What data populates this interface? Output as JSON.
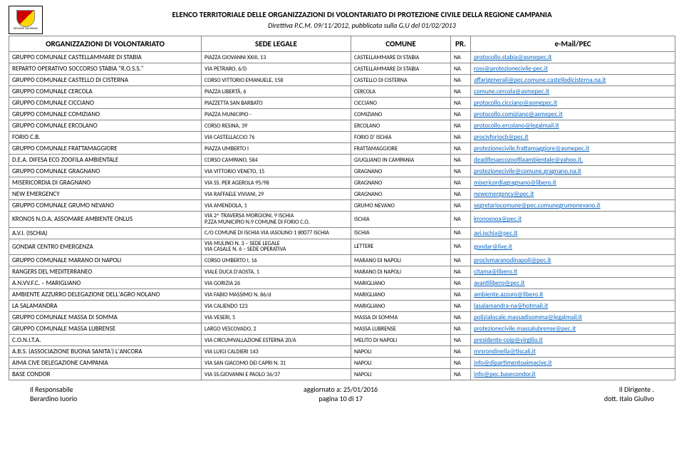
{
  "header": {
    "logo_caption": "REGIONE CAMPANIA",
    "title": "ELENCO TERRITORIALE DELLE ORGANIZZAZIONI DI VOLONTARIATO DI PROTEZIONE CIVILE DELLA REGIONE CAMPANIA",
    "subtitle": "Direttiva P.C.M. 09/11/2012, pubblicata sulla G.U del 01/02/2013"
  },
  "columns": {
    "org": "ORGANIZZAZIONI DI VOLONTARIATO",
    "sede": "SEDE LEGALE",
    "comune": "COMUNE",
    "pr": "PR.",
    "email": "e-Mail/PEC"
  },
  "rows": [
    {
      "org": "GRUPPO COMUNALE CASTELLAMMARE DI STABIA",
      "sede": "PIAZZA GIOVANNI XXIII, 13",
      "comune": "CASTELLAMMARE DI STABIA",
      "pr": "NA",
      "email": "protocollo.stabia@asmepec.it"
    },
    {
      "org": "REPARTO OPERATIVO SOCCORSO STABIA \"R.O.S.S.\"",
      "sede": "VIA PETRARO, 6/D",
      "comune": "CASTELLAMMARE DI STABIA",
      "pr": "NA",
      "email": "ross@protezionecivile-pec.it"
    },
    {
      "org": "GRUPPO COMUNALE CASTELLO DI CISTERNA",
      "sede": "CORSO VITTORIO EMANUELE, 158",
      "comune": "CASTELLO DI CISTERNA",
      "pr": "NA",
      "email": "affarigenerali@pec.comune.castellodicisterna.na.it"
    },
    {
      "org": "GRUPPO COMUNALE CERCOLA",
      "sede": "PIAZZA LIBERTÀ, 6",
      "comune": "CERCOLA",
      "pr": "NA",
      "email": "comune.cercola@asmepec.it"
    },
    {
      "org": "GRUPPO COMUNALE CICCIANO",
      "sede": "PIAZZETTA SAN BARBATO",
      "comune": "CICCIANO",
      "pr": "NA",
      "email": "protocollo.cicciano@asmepec.it"
    },
    {
      "org": "GRUPPO COMUNALE COMIZIANO",
      "sede": "PIAZZA MUNICIPIO -",
      "comune": "COMIZIANO",
      "pr": "NA",
      "email": "protocollo.comiziano@asmepec.it"
    },
    {
      "org": "GRUPPO COMUNALE ERCOLANO",
      "sede": "CORSO RESINA, 39",
      "comune": "ERCOLANO",
      "pr": "NA",
      "email": "protocollo.ercolano@legalmail.it"
    },
    {
      "org": "FORIO C.B.",
      "sede": "VIA CASTELLACCIO 76",
      "comune": "FORIO D' ISCHIA",
      "pr": "NA",
      "email": "procivforiocb@pec.it"
    },
    {
      "org": "GRUPPO COMUNALE FRATTAMAGGIORE",
      "sede": "PIAZZA UMBERTO I",
      "comune": "FRATTAMAGGIORE",
      "pr": "NA",
      "email": "protezionecivile.frattamaggiore@asmepec.it"
    },
    {
      "org": "D.E.A. DIFESA ECO ZOOFILA AMBIENTALE",
      "sede": "CORSO CAMPANO, 584",
      "comune": "GIUGLIANO IN CAMPANIA",
      "pr": "NA",
      "email": "deadifesaecozoofilaambientale@yahoo.it."
    },
    {
      "org": "GRUPPO COMUNALE GRAGNANO",
      "sede": "VIA VITTORIO VENETO, 15",
      "comune": "GRAGNANO",
      "pr": "NA",
      "email": "protezionecivile@comune.gragnano.na.it"
    },
    {
      "org": "MISERICORDIA DI GRAGNANO",
      "sede": "VIA SS. PER AGEROLA 95/98",
      "comune": "GRAGNANO",
      "pr": "NA",
      "email": "misericordiagragnano@libero.it"
    },
    {
      "org": "NEW EMERGENCY",
      "sede": "VIA RAFFAELE VIVIANI, 29",
      "comune": "GRAGNANO",
      "pr": "NA",
      "email": "newemergency@pec.it"
    },
    {
      "org": "GRUPPO COMUNALE GRUMO NEVANO",
      "sede": "VIA AMENDOLA, 1",
      "comune": "GRUMO NEVANO",
      "pr": "NA",
      "email": "segretariocomune@pec.comunegrumonevano.it"
    },
    {
      "org": "KRONOS N.O.A. ASSOMARE AMBIENTE ONLUS",
      "sede": "VIA 2^ TRAVERSA MORGIONI, 9 ISCHIA\nP.ZZA MUNICIPIO N.9 COMUNE DI FORIO C.O.",
      "comune": "ISCHIA",
      "pr": "NA",
      "email": "kronosnoa@pec.it"
    },
    {
      "org": "A.V.I. (ISCHIA)",
      "sede": "C/O COMUNE DI ISCHIA VIA IASOLINO 1 80077 ISCHIA",
      "comune": "ISCHIA",
      "pr": "NA",
      "email": "avi.ischia@pec.it"
    },
    {
      "org": "GONDAR CENTRO EMERGENZA",
      "sede": "VIA MULINO N. 3 – SEDE LEGALE\nVIA CASALE N. 6 – SEDE OPERATIVA",
      "comune": "LETTERE",
      "pr": "NA",
      "email": "gondar@live.it"
    },
    {
      "org": "GRUPPO COMUNALE MARANO DI NAPOLI",
      "sede": "CORSO UMBERTO I, 16",
      "comune": "MARANO DI NAPOLI",
      "pr": "NA",
      "email": "procivmaranodinapoli@pec.it"
    },
    {
      "org": "RANGERS DEL MEDITERRANEO",
      "sede": "VIALE DUCA D'AOSTA, 1",
      "comune": "MARANO DI NAPOLI",
      "pr": "NA",
      "email": "citama@libero.it"
    },
    {
      "org": "A.N.VV.F.C. – MARIGLIANO",
      "sede": "VIA GORIZIA 26",
      "comune": "MARIGLIANO",
      "pr": "NA",
      "email": "avantilibero@pec.it"
    },
    {
      "org": "AMBIENTE AZZURRO DELEGAZIONE DELL'AGRO NOLANO",
      "sede": "VIA FABIO MASSIMO N. 86/d",
      "comune": "MARIGLIANO",
      "pr": "NA",
      "email": "ambiente.azzuro@libero.it"
    },
    {
      "org": "LA SALAMANDRA",
      "sede": "VIA CALIENDO 123",
      "comune": "MARIGLIANO",
      "pr": "NA",
      "email": "lasalamandra-na@hotmail.it"
    },
    {
      "org": "GRUPPO COMUNALE MASSA DI SOMMA",
      "sede": "VIA VESERI, 5",
      "comune": "MASSA DI SOMMA",
      "pr": "NA",
      "email": "polizialocale.massadisomma@legalmail.it"
    },
    {
      "org": "GRUPPO COMUNALE MASSA LUBRENSE",
      "sede": "LARGO VESCOVADO, 2",
      "comune": "MASSA LUBRENSE",
      "pr": "NA",
      "email": "protezionecivile.massalubrense@pec.it"
    },
    {
      "org": "C.O.N.I.T.A.",
      "sede": "VIA CIRCUMVALLAZIONE ESTERNA 20/A",
      "comune": "MELITO DI NAPOLI",
      "pr": "NA",
      "email": "presidente-coip@virgilio.it"
    },
    {
      "org": "A.B.S. (ASSOCIAZIONE BUONA SANITA') L'ANCORA",
      "sede": "VIA LUIGI CALDIERI 143",
      "comune": "NAPOLI",
      "pr": "NA",
      "email": "mrsrondinella@tiscali.it"
    },
    {
      "org": "AIMA CIVE DELEGAZIONE CAMPANIA",
      "sede": "VIA SAN GIACOMO DEI CAPRI N. 31",
      "comune": "NAPOLI",
      "pr": "NA",
      "email": "info@dipartimentoaimacive.it"
    },
    {
      "org": "BASE CONDOR",
      "sede": "VIA SS.GIOVANNI E PAOLO 36/37",
      "comune": "NAPOLI",
      "pr": "NA",
      "email": "info@pec.basecondor.it"
    }
  ],
  "footer": {
    "left1": "Il Responsabile",
    "left2": "Berardino Iuorio",
    "center1": "aggiornato a: 25/01/2016",
    "center2": "pagina 10 di 17",
    "right1": "Il Dirigente      .",
    "right2": "dott. Italo Giulivo"
  },
  "link_color": "#0563c1"
}
